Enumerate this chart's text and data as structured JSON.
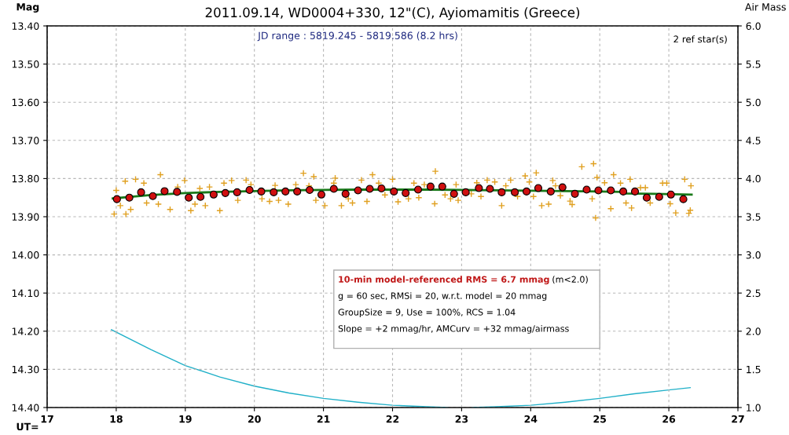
{
  "chart_data": {
    "type": "scatter",
    "title": "2011.09.14, WD0004+330, 12\"(C), Ayiomamitis (Greece)",
    "xlabel": "UT=",
    "ylabel": "Mag",
    "y2label": "Air Mass",
    "annotations": [
      "JD range : 5819.245 - 5819.586 (8.2 hrs)",
      "2 ref star(s)",
      "10-min model-referenced RMS = 6.7 mmag",
      "(m<2.0)",
      "g = 60 sec, RMSi = 20, w.r.t. model = 20 mmag",
      "GroupSize = 9, Use = 100%, RCS = 1.04",
      "Slope = +2 mmag/hr, AMCurv = +32 mmag/airmass"
    ],
    "xlim": [
      17,
      27
    ],
    "xticks": [
      17,
      18,
      19,
      20,
      21,
      22,
      23,
      24,
      25,
      26,
      27
    ],
    "ylim": [
      14.4,
      13.4
    ],
    "yticks": [
      {
        "value": 13.4,
        "label": "13.40"
      },
      {
        "value": 13.5,
        "label": "13.50"
      },
      {
        "value": 13.6,
        "label": "13.60"
      },
      {
        "value": 13.7,
        "label": "13.70"
      },
      {
        "value": 13.8,
        "label": "13.80"
      },
      {
        "value": 13.9,
        "label": "13.90"
      },
      {
        "value": 14.0,
        "label": "14.00"
      },
      {
        "value": 14.1,
        "label": "14.10"
      },
      {
        "value": 14.2,
        "label": "14.20"
      },
      {
        "value": 14.3,
        "label": "14.30"
      },
      {
        "value": 14.4,
        "label": "14.40"
      }
    ],
    "y2lim": [
      1,
      6
    ],
    "y2ticks": [
      {
        "value": 1,
        "label": "1.0"
      },
      {
        "value": 1.5,
        "label": "1.5"
      },
      {
        "value": 2,
        "label": "2.0"
      },
      {
        "value": 2.5,
        "label": "2.5"
      },
      {
        "value": 3,
        "label": "3.0"
      },
      {
        "value": 3.5,
        "label": "3.5"
      },
      {
        "value": 4,
        "label": "4.0"
      },
      {
        "value": 4.5,
        "label": "4.5"
      },
      {
        "value": 5,
        "label": "5.0"
      },
      {
        "value": 5.5,
        "label": "5.5"
      },
      {
        "value": 6,
        "label": "6.0"
      }
    ],
    "grid": true,
    "series": [
      {
        "marker": "cross",
        "color": "#e0a020",
        "x": [
          17.97,
          18.0,
          18.06,
          18.13,
          18.14,
          18.21,
          18.28,
          18.4,
          18.44,
          18.64,
          18.61,
          18.78,
          18.89,
          18.99,
          19.08,
          19.14,
          19.21,
          19.29,
          19.35,
          19.5,
          19.56,
          19.67,
          19.76,
          19.88,
          19.95,
          20.11,
          20.22,
          20.3,
          20.35,
          20.49,
          20.6,
          20.71,
          20.79,
          20.86,
          20.89,
          21.02,
          21.15,
          21.17,
          21.26,
          21.36,
          21.42,
          21.55,
          21.63,
          21.71,
          21.8,
          21.89,
          22.0,
          22.08,
          22.23,
          22.31,
          22.38,
          22.46,
          22.62,
          22.61,
          22.76,
          22.84,
          22.92,
          22.95,
          23.14,
          23.22,
          23.28,
          23.37,
          23.48,
          23.58,
          23.64,
          23.71,
          23.81,
          23.92,
          23.98,
          24.04,
          24.08,
          24.16,
          24.26,
          24.32,
          24.43,
          24.36,
          24.57,
          24.6,
          24.74,
          24.91,
          24.89,
          24.96,
          25.07,
          25.16,
          25.2,
          25.3,
          25.38,
          25.44,
          25.46,
          25.59,
          25.66,
          25.73,
          25.91,
          25.97,
          26.02,
          26.1,
          26.23,
          26.29,
          26.32,
          26.31,
          24.94
        ],
        "values": [
          13.893,
          13.831,
          13.871,
          13.807,
          13.893,
          13.881,
          13.802,
          13.812,
          13.864,
          13.79,
          13.867,
          13.881,
          13.822,
          13.805,
          13.884,
          13.867,
          13.826,
          13.871,
          13.822,
          13.884,
          13.812,
          13.805,
          13.857,
          13.804,
          13.816,
          13.853,
          13.86,
          13.818,
          13.857,
          13.867,
          13.816,
          13.786,
          13.819,
          13.795,
          13.857,
          13.871,
          13.812,
          13.799,
          13.871,
          13.853,
          13.864,
          13.804,
          13.86,
          13.79,
          13.812,
          13.843,
          13.802,
          13.861,
          13.853,
          13.812,
          13.85,
          13.816,
          13.781,
          13.866,
          13.843,
          13.853,
          13.816,
          13.857,
          13.84,
          13.811,
          13.847,
          13.804,
          13.809,
          13.871,
          13.819,
          13.804,
          13.847,
          13.793,
          13.809,
          13.847,
          13.785,
          13.871,
          13.867,
          13.805,
          13.845,
          13.819,
          13.859,
          13.868,
          13.769,
          13.761,
          13.853,
          13.797,
          13.811,
          13.879,
          13.79,
          13.812,
          13.864,
          13.802,
          13.877,
          13.824,
          13.824,
          13.864,
          13.812,
          13.812,
          13.866,
          13.89,
          13.802,
          13.891,
          13.819,
          13.883,
          13.903
        ]
      },
      {
        "type": "line",
        "marker": "none",
        "color": "#1a7a1a",
        "x": [
          17.95,
          18.5,
          19.0,
          19.5,
          20.0,
          20.5,
          21.0,
          21.5,
          22.0,
          22.5,
          23.0,
          23.5,
          24.0,
          24.5,
          25.0,
          25.3,
          25.35,
          25.8,
          26.33
        ],
        "values": [
          13.852,
          13.843,
          13.838,
          13.835,
          13.833,
          13.831,
          13.83,
          13.829,
          13.829,
          13.829,
          13.83,
          13.831,
          13.832,
          13.833,
          13.834,
          13.835,
          13.839,
          13.84,
          13.842
        ]
      },
      {
        "marker": "circle",
        "color": "#d01010",
        "x": [
          18.01,
          18.19,
          18.36,
          18.53,
          18.7,
          18.88,
          19.05,
          19.22,
          19.41,
          19.58,
          19.75,
          19.93,
          20.1,
          20.28,
          20.45,
          20.62,
          20.8,
          20.97,
          21.15,
          21.32,
          21.5,
          21.67,
          21.84,
          22.02,
          22.19,
          22.37,
          22.55,
          22.72,
          22.89,
          23.06,
          23.25,
          23.41,
          23.58,
          23.77,
          23.94,
          24.11,
          24.29,
          24.46,
          24.64,
          24.81,
          24.98,
          25.16,
          25.34,
          25.51,
          25.68,
          25.86,
          26.03,
          26.21
        ],
        "values": [
          13.854,
          13.85,
          13.836,
          13.846,
          13.833,
          13.835,
          13.85,
          13.848,
          13.842,
          13.838,
          13.836,
          13.83,
          13.834,
          13.836,
          13.834,
          13.834,
          13.83,
          13.842,
          13.827,
          13.84,
          13.831,
          13.827,
          13.826,
          13.834,
          13.838,
          13.829,
          13.821,
          13.821,
          13.84,
          13.836,
          13.825,
          13.827,
          13.836,
          13.836,
          13.834,
          13.825,
          13.834,
          13.823,
          13.84,
          13.829,
          13.831,
          13.831,
          13.834,
          13.834,
          13.85,
          13.848,
          13.842,
          13.854
        ]
      },
      {
        "type": "line",
        "axis": "y2",
        "marker": "none",
        "color": "#20b0c8",
        "x": [
          17.93,
          18.5,
          19.0,
          19.5,
          20.0,
          20.5,
          21.0,
          21.5,
          22.0,
          22.5,
          22.8,
          22.95,
          23.15,
          23.5,
          24.0,
          24.5,
          25.0,
          25.5,
          26.0,
          26.31
        ],
        "values": [
          2.02,
          1.76,
          1.55,
          1.4,
          1.28,
          1.19,
          1.12,
          1.07,
          1.03,
          1.01,
          1.0,
          null,
          1.0,
          1.01,
          1.03,
          1.07,
          1.12,
          1.18,
          1.23,
          1.26
        ]
      }
    ]
  }
}
